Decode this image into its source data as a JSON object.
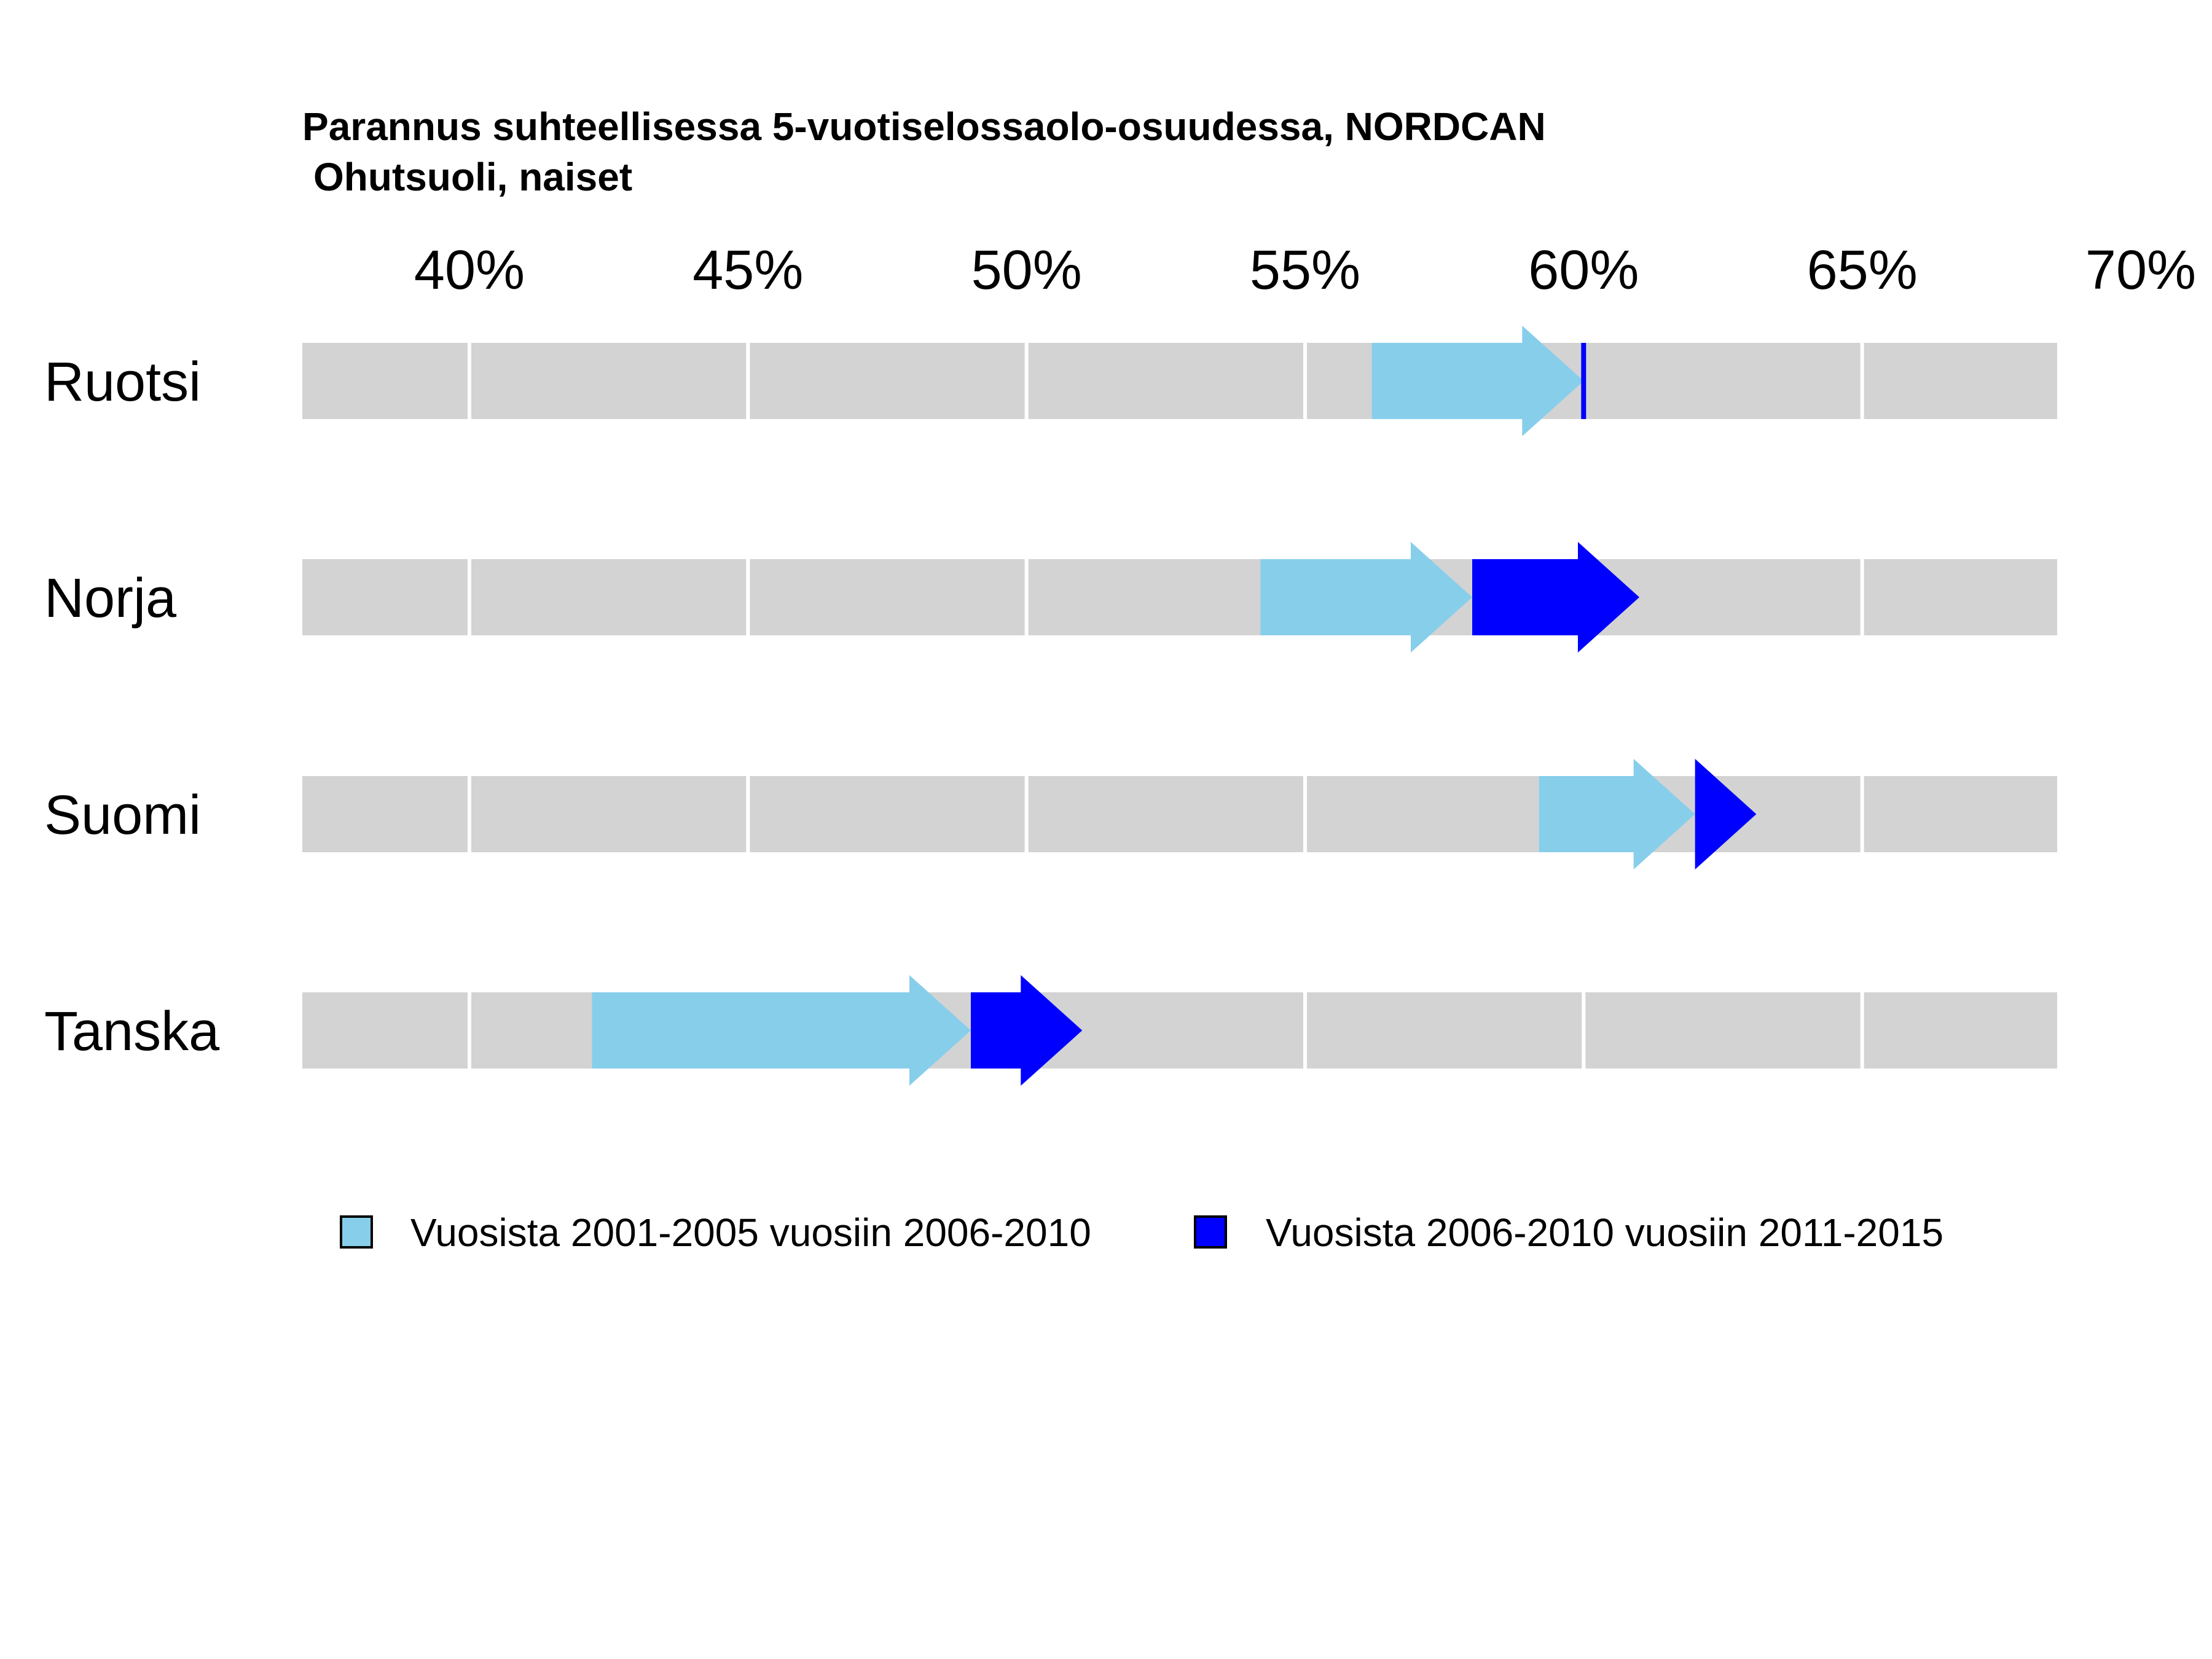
{
  "chart_data": {
    "type": "arrow",
    "title": "Parannus suhteellisessa 5-vuotiselossaolo-osuudessa, NORDCAN",
    "subtitle": "Ohutsuoli, naiset",
    "xlim": [
      37,
      68.5
    ],
    "x_ticks": [
      40,
      45,
      50,
      55,
      60,
      65,
      70
    ],
    "x_tick_labels": [
      "40%",
      "45%",
      "50%",
      "55%",
      "60%",
      "65%",
      "70%"
    ],
    "categories": [
      "Ruotsi",
      "Norja",
      "Suomi",
      "Tanska"
    ],
    "series": [
      {
        "name": "Vuosista 2001-2005 vuosiin 2006-2010",
        "color": "#87CEEB",
        "values": [
          {
            "from": 56.2,
            "to": 60.0
          },
          {
            "from": 54.2,
            "to": 58.0
          },
          {
            "from": 59.2,
            "to": 62.0
          },
          {
            "from": 42.2,
            "to": 49.0
          }
        ]
      },
      {
        "name": "Vuosista 2006-2010 vuosiin 2011-2015",
        "color": "#0000FF",
        "values": [
          {
            "from": 60.0,
            "to": 60.0
          },
          {
            "from": 58.0,
            "to": 61.0
          },
          {
            "from": 62.0,
            "to": 63.1
          },
          {
            "from": 49.0,
            "to": 51.0
          }
        ]
      }
    ],
    "background_color": "#D3D3D3",
    "grid": true,
    "legend_position": "bottom"
  }
}
